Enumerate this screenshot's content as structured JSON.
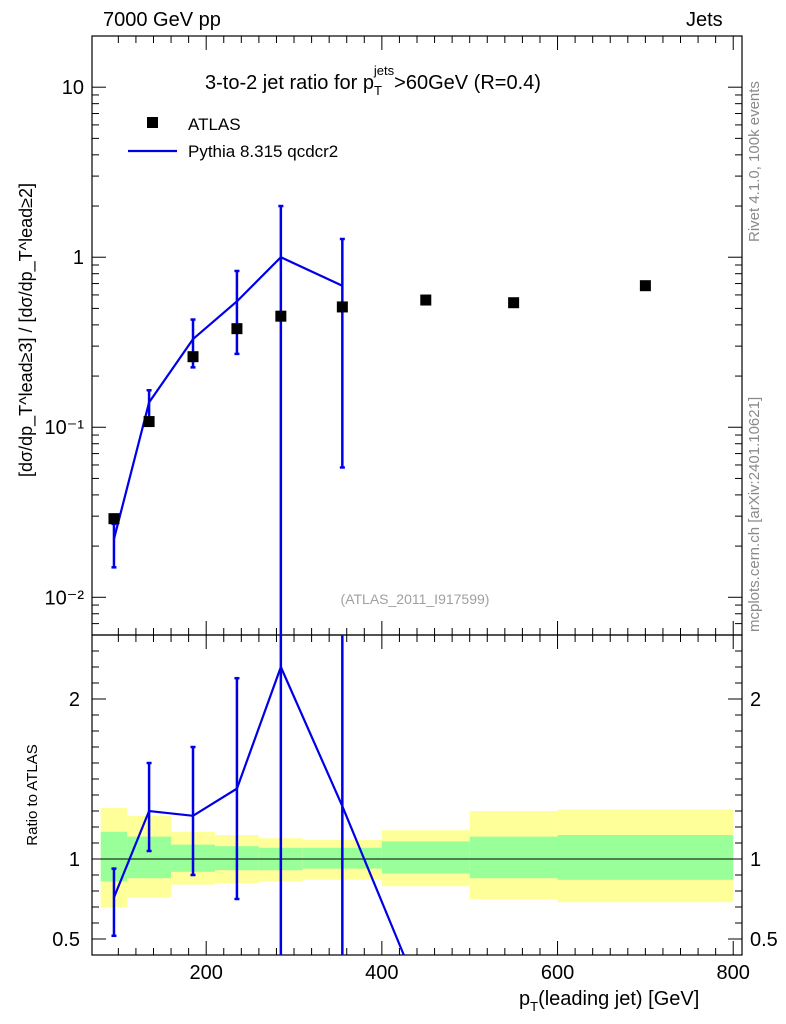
{
  "header": {
    "left": "7000 GeV pp",
    "right": "Jets"
  },
  "side_labels": {
    "rivet": "Rivet 4.1.0,  100k events",
    "source": "mcplots.cern.ch [arXiv:2401.10621]"
  },
  "chart_data": {
    "type": "line",
    "title_parts": {
      "a": "3-to-2 jet ratio for p",
      "sub": "T",
      "sup": "jets",
      "b": ">60GeV (R=0.4)"
    },
    "analysis_label": "(ATLAS_2011_I917599)",
    "xlabel": {
      "a": "p",
      "sub": "T",
      "b": "(leading jet) [GeV]"
    },
    "ylabel_top": "[dσ/dp_T^lead≥3] / [dσ/dp_T^lead≥2]",
    "ylabel_ratio": "Ratio to ATLAS",
    "xlim": [
      70,
      810
    ],
    "ylim_top": [
      0.006,
      20
    ],
    "yscale_top": "log",
    "ylim_ratio": [
      0.4,
      2.4
    ],
    "x_ticks": [
      200,
      400,
      600,
      800
    ],
    "y_ticks_top": [
      {
        "value": 10,
        "label": "10"
      },
      {
        "value": 1,
        "label": "1"
      },
      {
        "value": 0.1,
        "label": "10⁻¹"
      },
      {
        "value": 0.01,
        "label": "10⁻²"
      }
    ],
    "y_ticks_ratio": [
      {
        "value": 2,
        "label": "2"
      },
      {
        "value": 1,
        "label": "1"
      },
      {
        "value": 0.5,
        "label": "0.5"
      }
    ],
    "legend": {
      "position": "top-left",
      "entries": [
        "ATLAS",
        "Pythia 8.315 qcdcr2"
      ]
    },
    "series": [
      {
        "name": "ATLAS",
        "style": "marker",
        "color": "#000000",
        "x": [
          95,
          135,
          185,
          235,
          285,
          355,
          450,
          550,
          700
        ],
        "y": [
          0.029,
          0.108,
          0.26,
          0.38,
          0.45,
          0.51,
          0.56,
          0.54,
          0.68
        ]
      },
      {
        "name": "Pythia 8.315 qcdcr2",
        "style": "line",
        "color": "#0000e6",
        "x": [
          95,
          135,
          185,
          235,
          285,
          355
        ],
        "y": [
          0.022,
          0.14,
          0.33,
          0.55,
          1.0,
          0.68
        ],
        "err_low": [
          0.015,
          0.11,
          0.225,
          0.27,
          0.004,
          0.058
        ],
        "err_high": [
          0.027,
          0.165,
          0.43,
          0.83,
          2.0,
          1.28
        ]
      }
    ],
    "ratio": {
      "x": [
        95,
        135,
        185,
        235,
        285,
        355,
        425
      ],
      "y": [
        0.76,
        1.3,
        1.27,
        1.44,
        2.2,
        1.33,
        0.4
      ],
      "err_low": [
        0.52,
        1.05,
        0.9,
        0.75,
        0.4,
        0.4,
        null
      ],
      "err_high": [
        0.94,
        1.6,
        1.7,
        2.13,
        2.4,
        2.4,
        null
      ]
    },
    "bands": [
      {
        "x0": 80,
        "x1": 110,
        "green": [
          0.86,
          1.17
        ],
        "yellow": [
          0.7,
          1.32
        ]
      },
      {
        "x0": 110,
        "x1": 160,
        "green": [
          0.88,
          1.14
        ],
        "yellow": [
          0.76,
          1.27
        ]
      },
      {
        "x0": 160,
        "x1": 210,
        "green": [
          0.92,
          1.09
        ],
        "yellow": [
          0.84,
          1.17
        ]
      },
      {
        "x0": 210,
        "x1": 260,
        "green": [
          0.93,
          1.08
        ],
        "yellow": [
          0.85,
          1.15
        ]
      },
      {
        "x0": 260,
        "x1": 310,
        "green": [
          0.93,
          1.07
        ],
        "yellow": [
          0.86,
          1.13
        ]
      },
      {
        "x0": 310,
        "x1": 400,
        "green": [
          0.94,
          1.07
        ],
        "yellow": [
          0.87,
          1.12
        ]
      },
      {
        "x0": 400,
        "x1": 500,
        "green": [
          0.91,
          1.11
        ],
        "yellow": [
          0.83,
          1.18
        ]
      },
      {
        "x0": 500,
        "x1": 600,
        "green": [
          0.88,
          1.14
        ],
        "yellow": [
          0.75,
          1.3
        ]
      },
      {
        "x0": 600,
        "x1": 800,
        "green": [
          0.87,
          1.15
        ],
        "yellow": [
          0.73,
          1.31
        ]
      }
    ]
  }
}
